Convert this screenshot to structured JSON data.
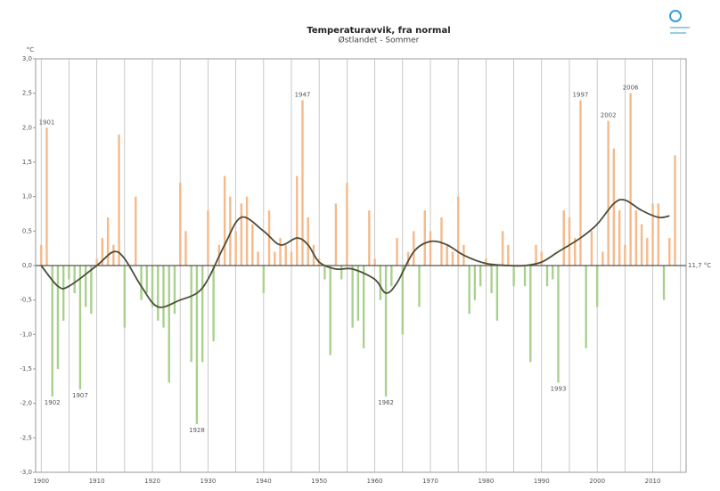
{
  "chart_data": {
    "type": "bar",
    "title": "Temperaturavvik, fra normal",
    "subtitle": "Østlandet - Sommer",
    "y_label": "°C",
    "normal_label": "11,7 °C",
    "x": [
      1900,
      1901,
      1902,
      1903,
      1904,
      1905,
      1906,
      1907,
      1908,
      1909,
      1910,
      1911,
      1912,
      1913,
      1914,
      1915,
      1916,
      1917,
      1918,
      1919,
      1920,
      1921,
      1922,
      1923,
      1924,
      1925,
      1926,
      1927,
      1928,
      1929,
      1930,
      1931,
      1932,
      1933,
      1934,
      1935,
      1936,
      1937,
      1938,
      1939,
      1940,
      1941,
      1942,
      1943,
      1944,
      1945,
      1946,
      1947,
      1948,
      1949,
      1950,
      1951,
      1952,
      1953,
      1954,
      1955,
      1956,
      1957,
      1958,
      1959,
      1960,
      1961,
      1962,
      1963,
      1964,
      1965,
      1966,
      1967,
      1968,
      1969,
      1970,
      1971,
      1972,
      1973,
      1974,
      1975,
      1976,
      1977,
      1978,
      1979,
      1980,
      1981,
      1982,
      1983,
      1984,
      1985,
      1986,
      1987,
      1988,
      1989,
      1990,
      1991,
      1992,
      1993,
      1994,
      1995,
      1996,
      1997,
      1998,
      1999,
      2000,
      2001,
      2002,
      2003,
      2004,
      2005,
      2006,
      2007,
      2008,
      2009,
      2010,
      2011,
      2012,
      2013,
      2014
    ],
    "values": [
      0.3,
      2.0,
      -1.9,
      -1.5,
      -0.8,
      -0.2,
      -0.4,
      -1.8,
      -0.6,
      -0.7,
      0.1,
      0.4,
      0.7,
      0.3,
      1.9,
      -0.9,
      0.0,
      1.0,
      -0.5,
      -0.4,
      -0.6,
      -0.8,
      -0.9,
      -1.7,
      -0.7,
      1.2,
      0.5,
      -1.4,
      -2.3,
      -1.4,
      0.8,
      -1.1,
      0.3,
      1.3,
      1.0,
      0.5,
      0.9,
      1.0,
      0.6,
      0.2,
      -0.4,
      0.8,
      0.2,
      0.4,
      0.3,
      0.2,
      1.3,
      2.4,
      0.7,
      0.3,
      0.1,
      -0.2,
      -1.3,
      0.9,
      -0.2,
      1.2,
      -0.9,
      -0.8,
      -1.2,
      0.8,
      0.1,
      -0.5,
      -1.9,
      -0.3,
      0.4,
      -1.0,
      0.2,
      0.5,
      -0.6,
      0.8,
      0.5,
      0.0,
      0.7,
      0.3,
      0.2,
      1.0,
      0.3,
      -0.7,
      -0.5,
      -0.3,
      0.1,
      -0.4,
      -0.8,
      0.5,
      0.3,
      -0.3,
      0.0,
      -0.3,
      -1.4,
      0.3,
      0.2,
      -0.3,
      -0.2,
      -1.7,
      0.8,
      0.7,
      0.4,
      2.4,
      -1.2,
      0.5,
      -0.6,
      0.2,
      2.1,
      1.7,
      0.8,
      0.3,
      2.5,
      0.8,
      0.6,
      0.4,
      0.9,
      0.9,
      -0.5,
      0.4,
      1.6
    ],
    "positive_color": "#f5b98a",
    "negative_color": "#a9d18e",
    "smooth": {
      "color": "#4d4d3a",
      "x": [
        1900,
        1903,
        1905,
        1910,
        1913,
        1915,
        1918,
        1921,
        1925,
        1928,
        1930,
        1933,
        1936,
        1940,
        1943,
        1946,
        1948,
        1950,
        1953,
        1956,
        1960,
        1962,
        1964,
        1967,
        1970,
        1973,
        1976,
        1980,
        1984,
        1987,
        1990,
        1993,
        1997,
        2000,
        2003,
        2005,
        2008,
        2011,
        2013
      ],
      "values": [
        0.0,
        -0.3,
        -0.3,
        0.0,
        0.2,
        0.1,
        -0.3,
        -0.6,
        -0.5,
        -0.4,
        -0.2,
        0.3,
        0.7,
        0.5,
        0.3,
        0.4,
        0.3,
        0.05,
        -0.05,
        -0.05,
        -0.2,
        -0.4,
        -0.25,
        0.2,
        0.35,
        0.3,
        0.15,
        0.03,
        0.0,
        0.0,
        0.05,
        0.2,
        0.4,
        0.6,
        0.9,
        0.95,
        0.8,
        0.7,
        0.72
      ]
    },
    "annotations": [
      "1901",
      "1902",
      "1907",
      "1928",
      "1947",
      "1962",
      "1993",
      "1997",
      "2002",
      "2006"
    ],
    "xlim": [
      1899,
      2016
    ],
    "ylim": [
      -3,
      3
    ],
    "xticks": [
      1900,
      1910,
      1920,
      1930,
      1940,
      1950,
      1960,
      1970,
      1980,
      1990,
      2000,
      2010
    ],
    "xgrid": [
      1905,
      1915,
      1925,
      1935,
      1945,
      1955,
      1965,
      1975,
      1985,
      1995,
      2005,
      2015
    ],
    "yticks": [
      {
        "value": -3,
        "label": "-3,0"
      },
      {
        "value": -2.5,
        "label": "-2,5"
      },
      {
        "value": -2,
        "label": "-2,0"
      },
      {
        "value": -1.5,
        "label": "-1,5"
      },
      {
        "value": -1,
        "label": "-1,0"
      },
      {
        "value": -0.5,
        "label": "-0,5"
      },
      {
        "value": 0,
        "label": "0,0"
      },
      {
        "value": 0.5,
        "label": "0,5"
      },
      {
        "value": 1,
        "label": "1,0"
      },
      {
        "value": 1.5,
        "label": "1,5"
      },
      {
        "value": 2,
        "label": "2,0"
      },
      {
        "value": 2.5,
        "label": "2,5"
      },
      {
        "value": 3,
        "label": "3,0"
      }
    ],
    "grid": true
  }
}
